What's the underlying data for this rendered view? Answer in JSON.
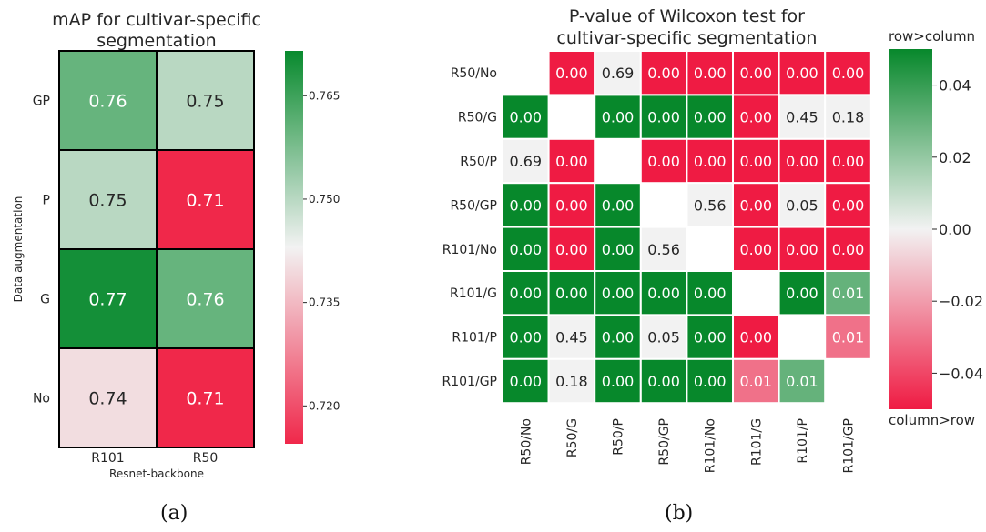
{
  "captions": {
    "a": "(a)",
    "b": "(b)"
  },
  "chart_data": [
    {
      "type": "heatmap",
      "title": "mAP for cultivar-specific segmentation",
      "xlabel": "Resnet-backbone",
      "ylabel": "Data augmentation",
      "x_categories": [
        "R101",
        "R50"
      ],
      "y_categories": [
        "GP",
        "P",
        "G",
        "No"
      ],
      "values": [
        [
          0.76,
          0.75
        ],
        [
          0.75,
          0.71
        ],
        [
          0.77,
          0.76
        ],
        [
          0.74,
          0.71
        ]
      ],
      "value_format": "0.00",
      "colorbar": {
        "ticks": [
          0.765,
          0.75,
          0.735,
          0.72
        ],
        "tick_labels": [
          "0.765",
          "0.750",
          "0.735",
          "0.720"
        ],
        "range": [
          0.7145,
          0.7715
        ]
      },
      "colors": {
        "low": "#f0284a",
        "mid": "#f2f2f2",
        "high": "#088a2e"
      },
      "cell_borders": "black"
    },
    {
      "type": "heatmap",
      "title": "P-value of Wilcoxon test for cultivar-specific segmentation",
      "row_categories": [
        "R50/No",
        "R50/G",
        "R50/P",
        "R50/GP",
        "R101/No",
        "R101/G",
        "R101/P",
        "R101/GP"
      ],
      "col_categories": [
        "R50/No",
        "R50/G",
        "R50/P",
        "R50/GP",
        "R101/No",
        "R101/G",
        "R101/P",
        "R101/GP"
      ],
      "cells": [
        [
          null,
          "0.00",
          "0.69",
          "0.00",
          "0.00",
          "0.00",
          "0.00",
          "0.00"
        ],
        [
          "0.00",
          null,
          "0.00",
          "0.00",
          "0.00",
          "0.00",
          "0.45",
          "0.18"
        ],
        [
          "0.69",
          "0.00",
          null,
          "0.00",
          "0.00",
          "0.00",
          "0.00",
          "0.00"
        ],
        [
          "0.00",
          "0.00",
          "0.00",
          null,
          "0.56",
          "0.00",
          "0.05",
          "0.00"
        ],
        [
          "0.00",
          "0.00",
          "0.00",
          "0.56",
          null,
          "0.00",
          "0.00",
          "0.00"
        ],
        [
          "0.00",
          "0.00",
          "0.00",
          "0.00",
          "0.00",
          null,
          "0.00",
          "0.01"
        ],
        [
          "0.00",
          "0.45",
          "0.00",
          "0.05",
          "0.00",
          "0.00",
          null,
          "0.01"
        ],
        [
          "0.00",
          "0.18",
          "0.00",
          "0.00",
          "0.00",
          "0.01",
          "0.01",
          null
        ]
      ],
      "direction": [
        [
          0,
          -1,
          0,
          -1,
          -1,
          -1,
          -1,
          -1
        ],
        [
          1,
          0,
          1,
          1,
          1,
          -1,
          0,
          0
        ],
        [
          0,
          -1,
          0,
          -1,
          -1,
          -1,
          -1,
          -1
        ],
        [
          1,
          -1,
          1,
          0,
          0,
          -1,
          0,
          -1
        ],
        [
          1,
          -1,
          1,
          0,
          0,
          -1,
          -1,
          -1
        ],
        [
          1,
          1,
          1,
          1,
          1,
          0,
          1,
          0.6
        ],
        [
          1,
          0,
          1,
          0,
          1,
          -1,
          0,
          -0.6
        ],
        [
          1,
          0,
          1,
          1,
          1,
          -0.6,
          0.6,
          0
        ]
      ],
      "colorbar": {
        "ticks": [
          0.04,
          0.02,
          0.0,
          -0.02,
          -0.04
        ],
        "tick_labels": [
          "0.04",
          "0.02",
          "0.00",
          "−0.02",
          "−0.04"
        ],
        "range": [
          -0.05,
          0.05
        ],
        "top_label": "row>column",
        "bottom_label": "column>row"
      },
      "colors": {
        "low": "#ef1b43",
        "mid": "#f2f2f2",
        "high": "#07882b"
      },
      "cell_borders": "white"
    }
  ]
}
